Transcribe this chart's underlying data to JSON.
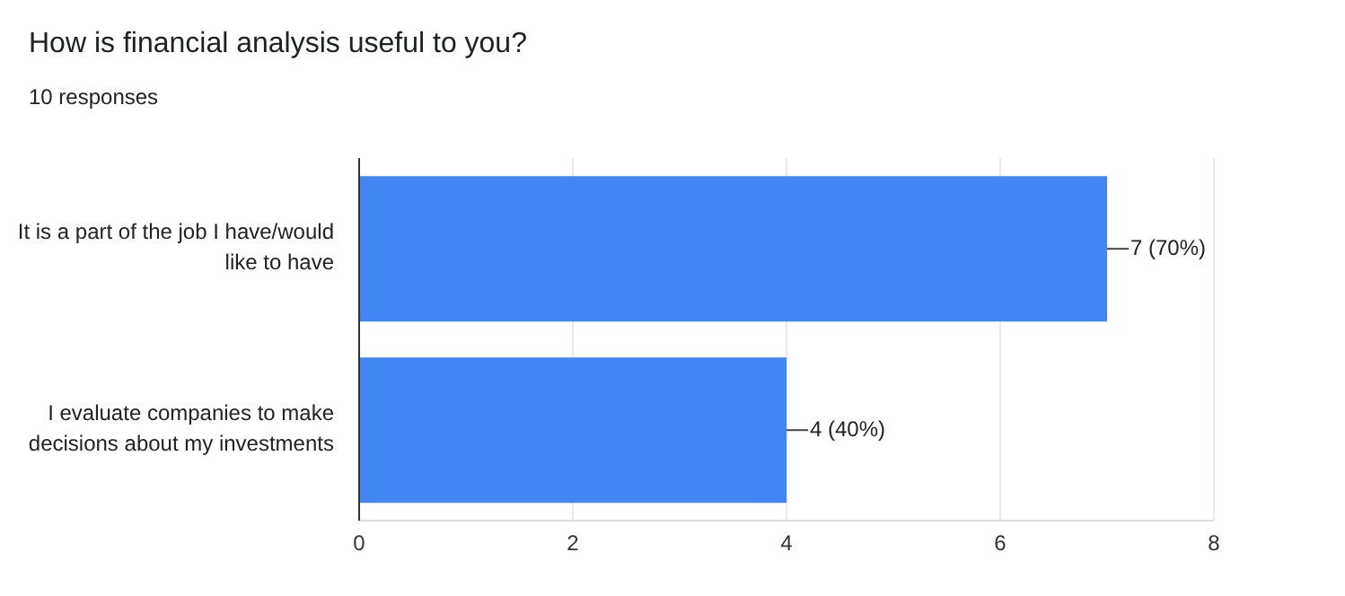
{
  "chart_data": {
    "type": "bar",
    "orientation": "horizontal",
    "title": "How is financial analysis useful to you?",
    "subtitle": "10 responses",
    "categories": [
      "It is a part of the job I have/would like to have",
      "I evaluate companies to make decisions about my investments"
    ],
    "values": [
      7,
      4
    ],
    "value_labels": [
      "7 (70%)",
      "4 (40%)"
    ],
    "color": "#4285f4",
    "xlim": [
      0,
      8
    ],
    "xticks": [
      0,
      2,
      4,
      6,
      8
    ],
    "grid": "x"
  }
}
